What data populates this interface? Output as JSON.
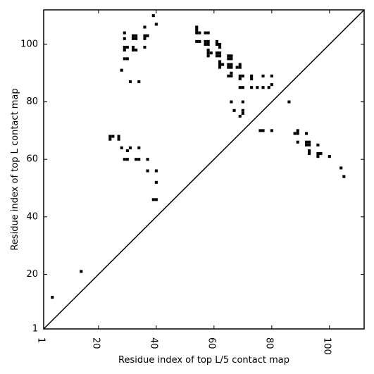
{
  "chart_data": {
    "type": "scatter",
    "xlabel": "Residue index of top L/5 contact map",
    "ylabel": "Residue index of top L contact map",
    "xlim": [
      1,
      112
    ],
    "ylim": [
      1,
      112
    ],
    "x_ticks": [
      1,
      20,
      40,
      60,
      80,
      100
    ],
    "y_ticks": [
      1,
      20,
      40,
      60,
      80,
      100
    ],
    "diagonal_line": true,
    "grid": false,
    "points": [
      [
        4,
        12
      ],
      [
        14,
        21
      ],
      [
        24,
        67
      ],
      [
        24,
        68
      ],
      [
        25,
        68
      ],
      [
        27,
        67
      ],
      [
        27,
        68
      ],
      [
        28,
        64
      ],
      [
        29,
        60
      ],
      [
        30,
        60
      ],
      [
        30,
        63
      ],
      [
        31,
        64
      ],
      [
        33,
        60
      ],
      [
        34,
        60
      ],
      [
        34,
        64
      ],
      [
        37,
        56
      ],
      [
        37,
        60
      ],
      [
        40,
        56
      ],
      [
        40,
        52
      ],
      [
        39,
        46
      ],
      [
        40,
        46
      ],
      [
        28,
        91
      ],
      [
        29,
        95
      ],
      [
        30,
        95
      ],
      [
        31,
        87
      ],
      [
        34,
        87
      ],
      [
        29,
        98
      ],
      [
        29,
        99
      ],
      [
        30,
        99
      ],
      [
        32,
        98
      ],
      [
        32,
        99
      ],
      [
        33,
        98
      ],
      [
        29,
        102
      ],
      [
        29,
        104
      ],
      [
        32,
        102
      ],
      [
        33,
        102
      ],
      [
        32,
        103
      ],
      [
        33,
        103
      ],
      [
        36,
        102
      ],
      [
        37,
        103
      ],
      [
        36,
        103
      ],
      [
        36,
        106
      ],
      [
        36,
        99
      ],
      [
        39,
        110
      ],
      [
        40,
        107
      ],
      [
        54,
        101
      ],
      [
        55,
        101
      ],
      [
        54,
        104
      ],
      [
        55,
        104
      ],
      [
        54,
        105
      ],
      [
        54,
        106
      ],
      [
        57,
        104
      ],
      [
        58,
        104
      ],
      [
        57,
        101
      ],
      [
        58,
        101
      ],
      [
        57,
        100
      ],
      [
        58,
        100
      ],
      [
        58,
        96
      ],
      [
        58,
        97
      ],
      [
        58,
        98
      ],
      [
        59,
        97
      ],
      [
        61,
        100
      ],
      [
        62,
        100
      ],
      [
        61,
        101
      ],
      [
        62,
        99
      ],
      [
        61,
        96
      ],
      [
        62,
        96
      ],
      [
        61,
        97
      ],
      [
        62,
        97
      ],
      [
        62,
        92
      ],
      [
        62,
        93
      ],
      [
        62,
        94
      ],
      [
        63,
        93
      ],
      [
        65,
        95
      ],
      [
        66,
        95
      ],
      [
        65,
        96
      ],
      [
        66,
        96
      ],
      [
        65,
        92
      ],
      [
        66,
        92
      ],
      [
        65,
        93
      ],
      [
        66,
        93
      ],
      [
        65,
        89
      ],
      [
        66,
        89
      ],
      [
        66,
        90
      ],
      [
        68,
        92
      ],
      [
        69,
        92
      ],
      [
        69,
        93
      ],
      [
        69,
        88
      ],
      [
        69,
        89
      ],
      [
        70,
        89
      ],
      [
        69,
        85
      ],
      [
        70,
        85
      ],
      [
        73,
        85
      ],
      [
        75,
        85
      ],
      [
        77,
        85
      ],
      [
        79,
        85
      ],
      [
        73,
        88
      ],
      [
        73,
        89
      ],
      [
        77,
        89
      ],
      [
        80,
        89
      ],
      [
        80,
        86
      ],
      [
        66,
        80
      ],
      [
        70,
        80
      ],
      [
        67,
        77
      ],
      [
        70,
        76
      ],
      [
        70,
        77
      ],
      [
        69,
        75
      ],
      [
        76,
        70
      ],
      [
        77,
        70
      ],
      [
        80,
        70
      ],
      [
        86,
        80
      ],
      [
        88,
        69
      ],
      [
        89,
        69
      ],
      [
        89,
        70
      ],
      [
        92,
        69
      ],
      [
        89,
        66
      ],
      [
        92,
        65
      ],
      [
        93,
        65
      ],
      [
        92,
        66
      ],
      [
        93,
        66
      ],
      [
        93,
        62
      ],
      [
        93,
        63
      ],
      [
        96,
        65
      ],
      [
        96,
        61
      ],
      [
        96,
        62
      ],
      [
        97,
        62
      ],
      [
        100,
        61
      ],
      [
        104,
        57
      ],
      [
        105,
        54
      ]
    ]
  }
}
